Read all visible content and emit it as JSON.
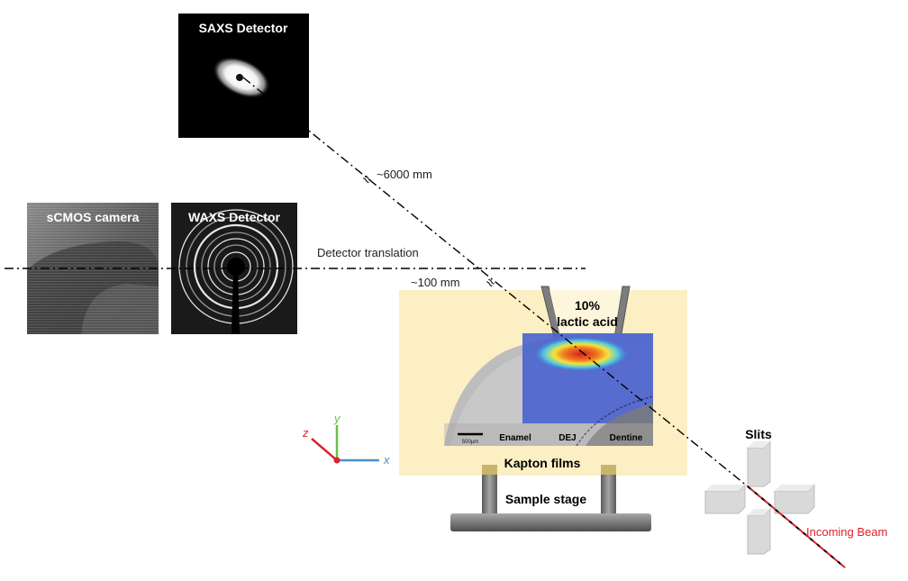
{
  "panels": {
    "saxs_title": "SAXS Detector",
    "scmos_title": "sCMOS camera",
    "waxs_title": "WAXS Detector"
  },
  "annotations": {
    "saxs_distance": "~6000 mm",
    "waxs_distance": "~100 mm",
    "detector_translation": "Detector translation",
    "approx_symbol": "≈"
  },
  "sample": {
    "acid_pct": "10%",
    "acid_name": "lactic acid",
    "scale_bar": "500μm",
    "enamel": "Enamel",
    "dej": "DEJ",
    "dentine": "Dentine",
    "kapton": "Kapton films",
    "stage": "Sample stage"
  },
  "axes": {
    "x": "x",
    "y": "y",
    "z": "z"
  },
  "beamline": {
    "slits": "Slits",
    "incoming_beam": "Incoming Beam"
  },
  "colors": {
    "beam": "#e0202a",
    "kapton_bg": "#fcefc4",
    "axis_x": "#4a90c8",
    "axis_y": "#6cbf4a",
    "axis_z": "#d9252a"
  }
}
